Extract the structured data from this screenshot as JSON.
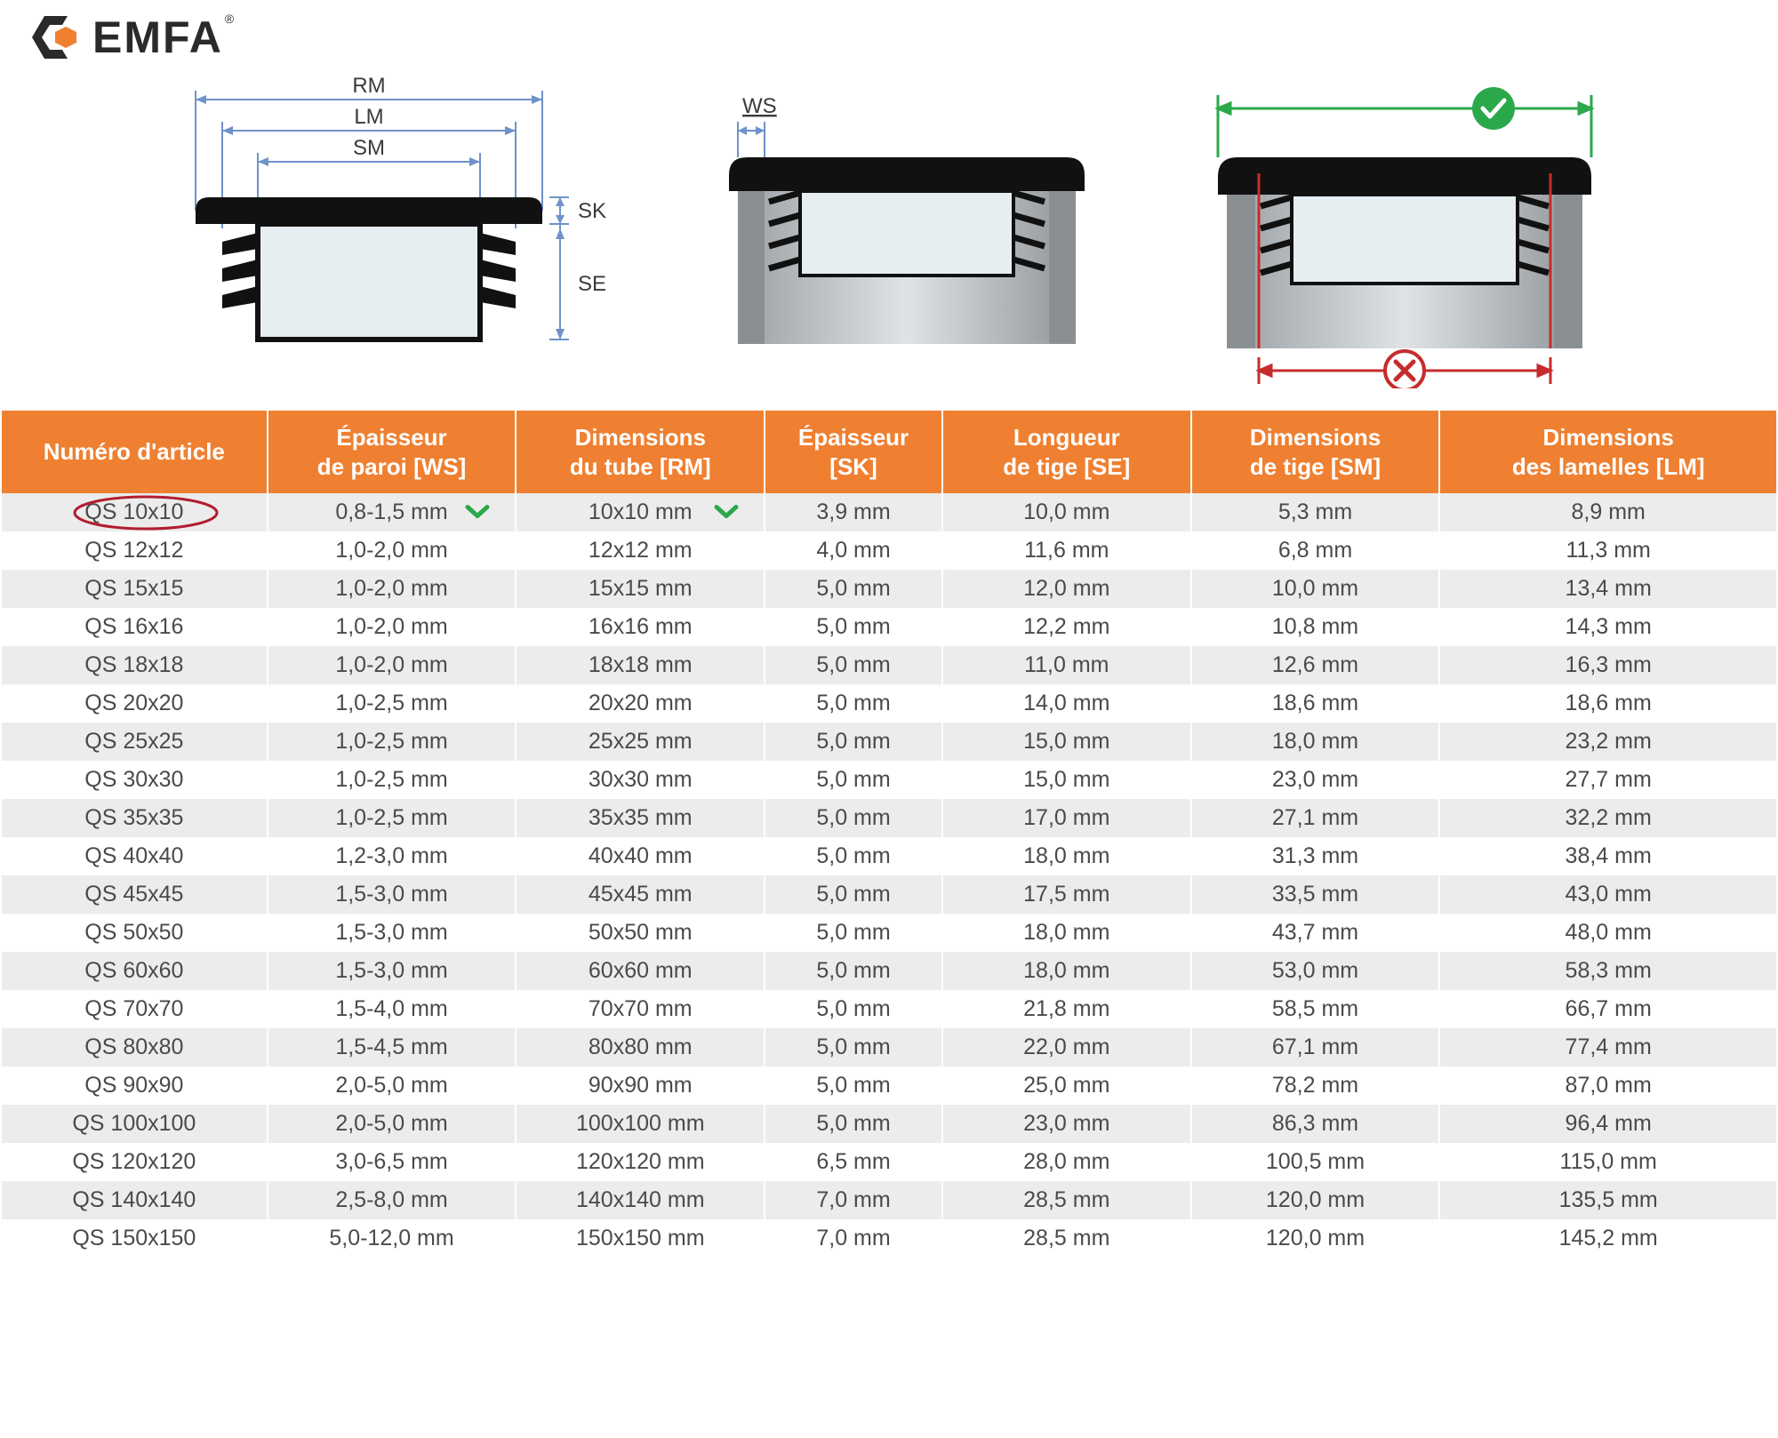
{
  "brand": {
    "name": "EMFA",
    "reg": "®"
  },
  "colors": {
    "header_bg": "#ef8031",
    "header_text": "#ffffff",
    "row_alt": "#ececec",
    "row_bg": "#ffffff",
    "text": "#4a4a4a",
    "circle_red": "#b11d2f",
    "check_green": "#2ba84a",
    "dim_blue": "#6f92c9",
    "bad_red": "#c62c2c",
    "good_green": "#2ba84a",
    "tube_fill": "#c8cccf",
    "cap_black": "#111111"
  },
  "diagram_labels": {
    "rm": "RM",
    "lm": "LM",
    "sm": "SM",
    "sk": "SK",
    "se": "SE",
    "ws": "WS"
  },
  "table": {
    "columns": [
      {
        "key": "art",
        "label_line1": "Numéro d'article",
        "label_line2": ""
      },
      {
        "key": "ws",
        "label_line1": "Épaisseur",
        "label_line2": "de paroi [WS]"
      },
      {
        "key": "rm",
        "label_line1": "Dimensions",
        "label_line2": "du tube [RM]"
      },
      {
        "key": "sk",
        "label_line1": "Épaisseur",
        "label_line2": "[SK]"
      },
      {
        "key": "se",
        "label_line1": "Longueur",
        "label_line2": "de tige [SE]"
      },
      {
        "key": "sm",
        "label_line1": "Dimensions",
        "label_line2": "de tige [SM]"
      },
      {
        "key": "lm",
        "label_line1": "Dimensions",
        "label_line2": "des lamelles [LM]"
      }
    ],
    "highlight_row_index": 0,
    "rows": [
      {
        "art": "QS 10x10",
        "ws": "0,8-1,5 mm",
        "rm": "10x10 mm",
        "sk": "3,9 mm",
        "se": "10,0 mm",
        "sm": "5,3 mm",
        "lm": "8,9 mm"
      },
      {
        "art": "QS 12x12",
        "ws": "1,0-2,0 mm",
        "rm": "12x12 mm",
        "sk": "4,0 mm",
        "se": "11,6 mm",
        "sm": "6,8 mm",
        "lm": "11,3 mm"
      },
      {
        "art": "QS 15x15",
        "ws": "1,0-2,0 mm",
        "rm": "15x15 mm",
        "sk": "5,0 mm",
        "se": "12,0 mm",
        "sm": "10,0 mm",
        "lm": "13,4 mm"
      },
      {
        "art": "QS 16x16",
        "ws": "1,0-2,0 mm",
        "rm": "16x16 mm",
        "sk": "5,0 mm",
        "se": "12,2 mm",
        "sm": "10,8 mm",
        "lm": "14,3 mm"
      },
      {
        "art": "QS 18x18",
        "ws": "1,0-2,0 mm",
        "rm": "18x18 mm",
        "sk": "5,0 mm",
        "se": "11,0 mm",
        "sm": "12,6 mm",
        "lm": "16,3 mm"
      },
      {
        "art": "QS 20x20",
        "ws": "1,0-2,5 mm",
        "rm": "20x20 mm",
        "sk": "5,0 mm",
        "se": "14,0 mm",
        "sm": "18,6 mm",
        "lm": "18,6 mm"
      },
      {
        "art": "QS 25x25",
        "ws": "1,0-2,5 mm",
        "rm": "25x25 mm",
        "sk": "5,0 mm",
        "se": "15,0 mm",
        "sm": "18,0 mm",
        "lm": "23,2 mm"
      },
      {
        "art": "QS 30x30",
        "ws": "1,0-2,5 mm",
        "rm": "30x30 mm",
        "sk": "5,0 mm",
        "se": "15,0 mm",
        "sm": "23,0 mm",
        "lm": "27,7 mm"
      },
      {
        "art": "QS 35x35",
        "ws": "1,0-2,5 mm",
        "rm": "35x35 mm",
        "sk": "5,0 mm",
        "se": "17,0 mm",
        "sm": "27,1 mm",
        "lm": "32,2 mm"
      },
      {
        "art": "QS 40x40",
        "ws": "1,2-3,0 mm",
        "rm": "40x40 mm",
        "sk": "5,0 mm",
        "se": "18,0 mm",
        "sm": "31,3 mm",
        "lm": "38,4 mm"
      },
      {
        "art": "QS 45x45",
        "ws": "1,5-3,0 mm",
        "rm": "45x45 mm",
        "sk": "5,0 mm",
        "se": "17,5 mm",
        "sm": "33,5 mm",
        "lm": "43,0 mm"
      },
      {
        "art": "QS 50x50",
        "ws": "1,5-3,0 mm",
        "rm": "50x50 mm",
        "sk": "5,0 mm",
        "se": "18,0 mm",
        "sm": "43,7 mm",
        "lm": "48,0 mm"
      },
      {
        "art": "QS 60x60",
        "ws": "1,5-3,0 mm",
        "rm": "60x60 mm",
        "sk": "5,0 mm",
        "se": "18,0 mm",
        "sm": "53,0 mm",
        "lm": "58,3 mm"
      },
      {
        "art": "QS 70x70",
        "ws": "1,5-4,0 mm",
        "rm": "70x70 mm",
        "sk": "5,0 mm",
        "se": "21,8 mm",
        "sm": "58,5 mm",
        "lm": "66,7 mm"
      },
      {
        "art": "QS 80x80",
        "ws": "1,5-4,5 mm",
        "rm": "80x80 mm",
        "sk": "5,0 mm",
        "se": "22,0 mm",
        "sm": "67,1 mm",
        "lm": "77,4 mm"
      },
      {
        "art": "QS 90x90",
        "ws": "2,0-5,0 mm",
        "rm": "90x90 mm",
        "sk": "5,0 mm",
        "se": "25,0 mm",
        "sm": "78,2 mm",
        "lm": "87,0 mm"
      },
      {
        "art": "QS 100x100",
        "ws": "2,0-5,0 mm",
        "rm": "100x100 mm",
        "sk": "5,0 mm",
        "se": "23,0 mm",
        "sm": "86,3 mm",
        "lm": "96,4 mm"
      },
      {
        "art": "QS 120x120",
        "ws": "3,0-6,5 mm",
        "rm": "120x120 mm",
        "sk": "6,5 mm",
        "se": "28,0 mm",
        "sm": "100,5 mm",
        "lm": "115,0 mm"
      },
      {
        "art": "QS 140x140",
        "ws": "2,5-8,0 mm",
        "rm": "140x140 mm",
        "sk": "7,0 mm",
        "se": "28,5 mm",
        "sm": "120,0 mm",
        "lm": "135,5 mm"
      },
      {
        "art": "QS 150x150",
        "ws": "5,0-12,0 mm",
        "rm": "150x150 mm",
        "sk": "7,0 mm",
        "se": "28,5 mm",
        "sm": "120,0 mm",
        "lm": "145,2 mm"
      }
    ]
  }
}
